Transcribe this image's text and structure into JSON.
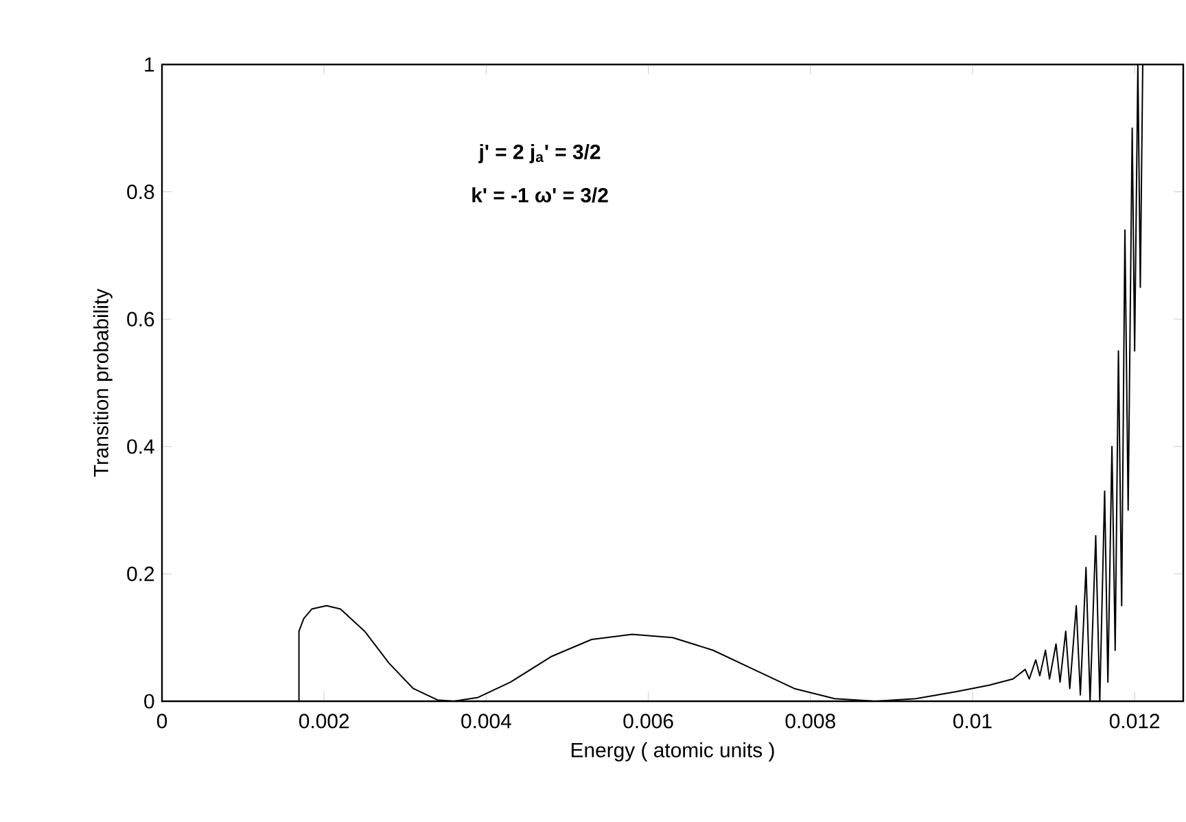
{
  "chart_data": {
    "type": "line",
    "xlabel": "Energy  ( atomic units )",
    "ylabel": "Transition probability",
    "annotations": [
      "**j' = 2  j$_{a}$' = 3/2**",
      "**k' = -1   ω' = 3/2**"
    ],
    "xlim": [
      0,
      0.0126
    ],
    "ylim": [
      0,
      1
    ],
    "xticks": [
      0,
      0.002,
      0.004,
      0.006,
      0.008,
      0.01,
      0.012
    ],
    "yticks": [
      0,
      0.2,
      0.4,
      0.6,
      0.8,
      1
    ],
    "line_style": "solid",
    "marker": "none",
    "series": [
      {
        "color": "#000000",
        "x": [
          0,
          0.00169,
          0.00169,
          0.00175,
          0.00185,
          0.00203,
          0.0022,
          0.0025,
          0.0028,
          0.0031,
          0.0034,
          0.0036,
          0.0039,
          0.0043,
          0.0048,
          0.0053,
          0.0058,
          0.0063,
          0.0068,
          0.0073,
          0.0078,
          0.0083,
          0.0088,
          0.0093,
          0.0098,
          0.0102,
          0.0105,
          0.01065,
          0.0107,
          0.01078,
          0.01083,
          0.0109,
          0.01095,
          0.01103,
          0.01108,
          0.01115,
          0.0112,
          0.01128,
          0.01133,
          0.0114,
          0.01145,
          0.01152,
          0.01157,
          0.01163,
          0.01167,
          0.01172,
          0.01176,
          0.0118,
          0.01184,
          0.01188,
          0.01192,
          0.01197,
          0.012,
          0.01204,
          0.01207,
          0.0121
        ],
        "values": [
          0,
          0,
          0.11,
          0.13,
          0.145,
          0.15,
          0.145,
          0.11,
          0.06,
          0.02,
          0.002,
          0,
          0.006,
          0.03,
          0.07,
          0.097,
          0.105,
          0.1,
          0.08,
          0.05,
          0.02,
          0.004,
          0,
          0.004,
          0.015,
          0.025,
          0.035,
          0.05,
          0.035,
          0.065,
          0.04,
          0.08,
          0.035,
          0.09,
          0.03,
          0.11,
          0.02,
          0.15,
          0.01,
          0.21,
          0,
          0.26,
          0,
          0.33,
          0.03,
          0.4,
          0.08,
          0.55,
          0.15,
          0.74,
          0.3,
          0.9,
          0.55,
          1,
          0.65,
          1
        ]
      }
    ]
  }
}
